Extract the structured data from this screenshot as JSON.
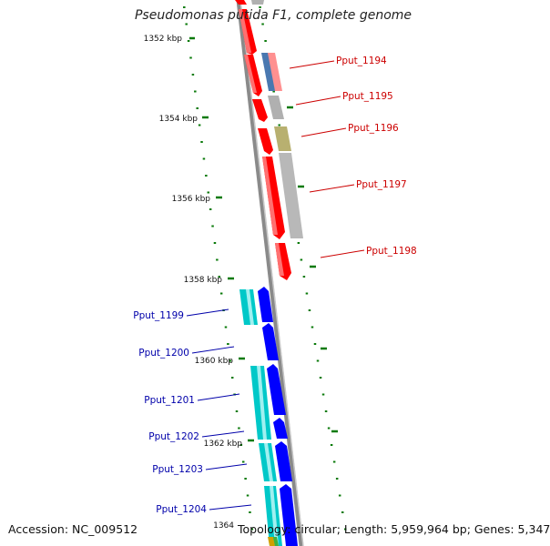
{
  "title": "Pseudomonas putida F1, complete genome",
  "accession": "Accession: NC_009512",
  "summary": "Topology: circular; Length: 5,959,964 bp; Genes: 5,347",
  "colors": {
    "forward_gene": "#ff0000",
    "forward_gene_shade": "#ff8080",
    "reverse_gene": "#0000ff",
    "reverse_gene_shade": "#00c8c8",
    "gray_feature": "#b0b0b0",
    "olive_feature": "#b8b070",
    "blue_gray_feature": "#4a78b0",
    "tick": "#0a7a0a",
    "forward_label": "#cc0000",
    "reverse_label": "#0000aa"
  },
  "ticks": [
    {
      "label": "1352 kbp",
      "kbp": 1352
    },
    {
      "label": "1354 kbp",
      "kbp": 1354
    },
    {
      "label": "1356 kbp",
      "kbp": 1356
    },
    {
      "label": "1358 kbp",
      "kbp": 1358
    },
    {
      "label": "1360 kbp",
      "kbp": 1360
    },
    {
      "label": "1362 kbp",
      "kbp": 1362
    },
    {
      "label": "1364",
      "kbp": 1364
    }
  ],
  "forward_genes": [
    {
      "label": "Pput_1194"
    },
    {
      "label": "Pput_1195"
    },
    {
      "label": "Pput_1196"
    },
    {
      "label": "Pput_1197"
    },
    {
      "label": "Pput_1198"
    }
  ],
  "reverse_genes": [
    {
      "label": "Pput_1199"
    },
    {
      "label": "Pput_1200"
    },
    {
      "label": "Pput_1201"
    },
    {
      "label": "Pput_1202"
    },
    {
      "label": "Pput_1203"
    },
    {
      "label": "Pput_1204"
    }
  ]
}
